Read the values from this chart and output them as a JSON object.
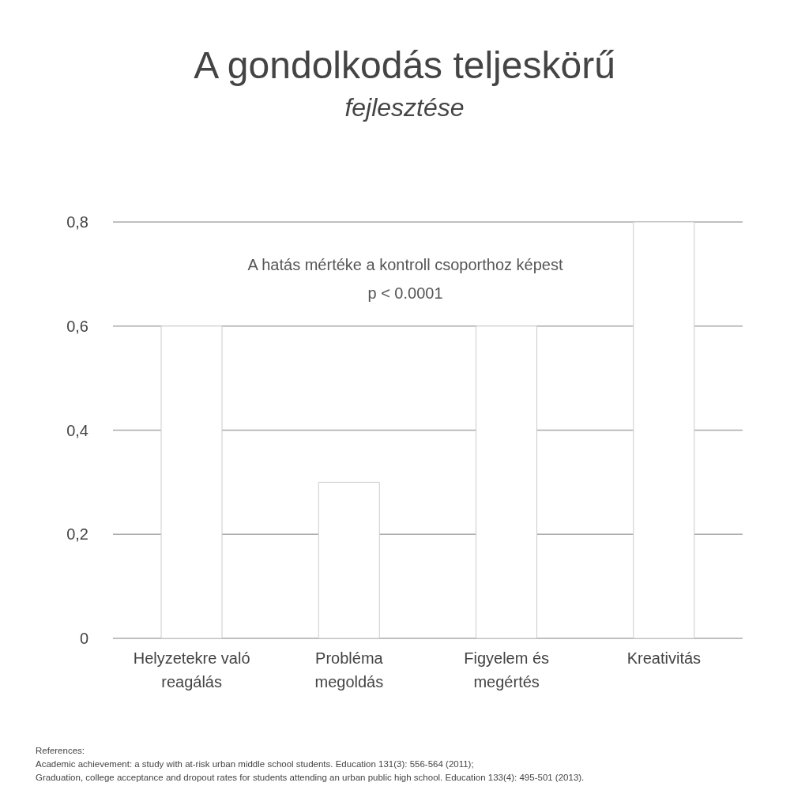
{
  "chart_data": {
    "type": "bar",
    "title": "A gondolkodás teljeskörű",
    "subtitle": "fejlesztése",
    "categories": [
      "Helyzetekre való reagálás",
      "Probléma megoldás",
      "Figyelem és megértés",
      "Kreativitás"
    ],
    "values": [
      0.6,
      0.3,
      0.6,
      0.8
    ],
    "color": "#ffffff",
    "ylim": [
      0,
      0.8
    ],
    "yticks": [
      0,
      {
        "value": 0.2,
        "label": "0,2"
      },
      {
        "value": 0.4,
        "label": "0,4"
      },
      {
        "value": 0.6,
        "label": "0,6"
      },
      {
        "value": 0.8,
        "label": "0,8"
      }
    ],
    "grid": "y",
    "annotations": [
      "A hatás mértéke a kontroll csoporthoz képest",
      "p < 0.0001",
      "References:",
      "Academic achievement: a study with at-risk urban middle school students. Education 131(3): 556-564 (2011);",
      "Graduation, college acceptance and dropout rates for students attending an urban public high school. Education 133(4): 495-501 (2013)."
    ]
  }
}
